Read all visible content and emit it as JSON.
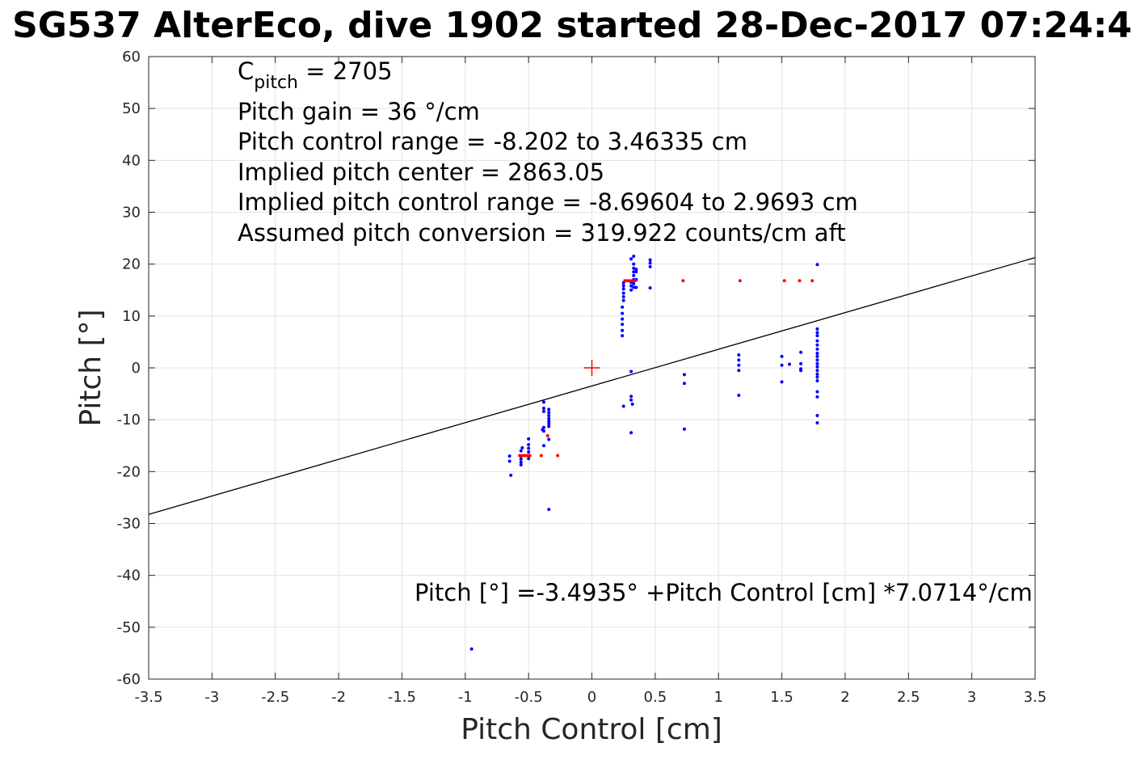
{
  "chart_data": {
    "type": "scatter",
    "title": "SG537 AlterEco, dive 1902 started 28-Dec-2017 07:24:4",
    "xlabel": "Pitch Control [cm]",
    "ylabel": "Pitch [°]",
    "xlim": [
      -3.5,
      3.5
    ],
    "ylim": [
      -60,
      60
    ],
    "xticks": [
      -3.5,
      -3,
      -2.5,
      -2,
      -1.5,
      -1,
      -0.5,
      0,
      0.5,
      1,
      1.5,
      2,
      2.5,
      3,
      3.5
    ],
    "xtick_labels": [
      "-3.5",
      "-3",
      "-2.5",
      "-2",
      "-1.5",
      "-1",
      "-0.5",
      "0",
      "0.5",
      "1",
      "1.5",
      "2",
      "2.5",
      "3",
      "3.5"
    ],
    "yticks": [
      -60,
      -50,
      -40,
      -30,
      -20,
      -10,
      0,
      10,
      20,
      30,
      40,
      50,
      60
    ],
    "ytick_labels": [
      "-60",
      "-50",
      "-40",
      "-30",
      "-20",
      "-10",
      "0",
      "10",
      "20",
      "30",
      "40",
      "50",
      "60"
    ],
    "grid": true,
    "series": [
      {
        "type": "scatter",
        "color": "#0000ff",
        "points": [
          [
            -0.65,
            -17.0
          ],
          [
            -0.65,
            -18.0
          ],
          [
            -0.64,
            -20.7
          ],
          [
            -0.56,
            -16.0
          ],
          [
            -0.56,
            -17.0
          ],
          [
            -0.56,
            -17.6
          ],
          [
            -0.56,
            -18.2
          ],
          [
            -0.56,
            -18.7
          ],
          [
            -0.55,
            -15.4
          ],
          [
            -0.5,
            -13.7
          ],
          [
            -0.5,
            -14.8
          ],
          [
            -0.5,
            -15.5
          ],
          [
            -0.5,
            -16.2
          ],
          [
            -0.5,
            -16.9
          ],
          [
            -0.5,
            -17.5
          ],
          [
            -0.38,
            -6.6
          ],
          [
            -0.38,
            -7.8
          ],
          [
            -0.38,
            -8.4
          ],
          [
            -0.38,
            -11.5
          ],
          [
            -0.38,
            -12.2
          ],
          [
            -0.38,
            -15.0
          ],
          [
            -0.39,
            -11.9
          ],
          [
            -0.34,
            -8.0
          ],
          [
            -0.34,
            -8.6
          ],
          [
            -0.34,
            -9.2
          ],
          [
            -0.34,
            -9.8
          ],
          [
            -0.34,
            -10.3
          ],
          [
            -0.34,
            -10.8
          ],
          [
            -0.34,
            -11.3
          ],
          [
            -0.34,
            -13.8
          ],
          [
            -0.34,
            -27.3
          ],
          [
            -0.95,
            -54.2
          ],
          [
            0.24,
            6.2
          ],
          [
            0.24,
            7.2
          ],
          [
            0.24,
            8.4
          ],
          [
            0.24,
            9.4
          ],
          [
            0.24,
            10.5
          ],
          [
            0.24,
            11.7
          ],
          [
            0.25,
            13.0
          ],
          [
            0.25,
            13.7
          ],
          [
            0.25,
            14.4
          ],
          [
            0.25,
            15.2
          ],
          [
            0.25,
            15.8
          ],
          [
            0.25,
            16.4
          ],
          [
            0.25,
            -7.4
          ],
          [
            0.31,
            15.0
          ],
          [
            0.31,
            15.8
          ],
          [
            0.31,
            16.5
          ],
          [
            0.31,
            21.0
          ],
          [
            0.31,
            -0.7
          ],
          [
            0.31,
            -5.5
          ],
          [
            0.31,
            -6.2
          ],
          [
            0.31,
            -12.5
          ],
          [
            0.32,
            -7.0
          ],
          [
            0.33,
            15.5
          ],
          [
            0.33,
            16.2
          ],
          [
            0.33,
            17.0
          ],
          [
            0.33,
            17.8
          ],
          [
            0.33,
            18.5
          ],
          [
            0.33,
            19.2
          ],
          [
            0.33,
            20.0
          ],
          [
            0.33,
            21.5
          ],
          [
            0.35,
            15.5
          ],
          [
            0.35,
            17.0
          ],
          [
            0.35,
            18.5
          ],
          [
            0.35,
            19.0
          ],
          [
            0.46,
            15.4
          ],
          [
            0.46,
            19.5
          ],
          [
            0.46,
            20.2
          ],
          [
            0.46,
            20.8
          ],
          [
            0.73,
            -1.3
          ],
          [
            0.73,
            -3.0
          ],
          [
            0.73,
            -11.8
          ],
          [
            1.16,
            2.5
          ],
          [
            1.16,
            1.5
          ],
          [
            1.16,
            0.5
          ],
          [
            1.16,
            -0.5
          ],
          [
            1.16,
            -5.3
          ],
          [
            1.5,
            2.2
          ],
          [
            1.5,
            0.5
          ],
          [
            1.5,
            -2.7
          ],
          [
            1.56,
            0.7
          ],
          [
            1.65,
            3.0
          ],
          [
            1.65,
            0.8
          ],
          [
            1.65,
            -0.2
          ],
          [
            1.65,
            -0.5
          ],
          [
            1.78,
            7.5
          ],
          [
            1.78,
            6.8
          ],
          [
            1.78,
            6.2
          ],
          [
            1.78,
            5.2
          ],
          [
            1.78,
            4.4
          ],
          [
            1.78,
            3.6
          ],
          [
            1.78,
            2.8
          ],
          [
            1.78,
            2.2
          ],
          [
            1.78,
            1.5
          ],
          [
            1.78,
            0.8
          ],
          [
            1.78,
            0.2
          ],
          [
            1.78,
            -0.5
          ],
          [
            1.78,
            -1.2
          ],
          [
            1.78,
            -1.8
          ],
          [
            1.78,
            -2.5
          ],
          [
            1.78,
            -4.6
          ],
          [
            1.78,
            -5.6
          ],
          [
            1.78,
            -9.2
          ],
          [
            1.78,
            -10.6
          ],
          [
            1.78,
            19.9
          ]
        ]
      },
      {
        "type": "scatter",
        "color": "#ff0000",
        "points": [
          [
            -0.57,
            -16.9
          ],
          [
            -0.55,
            -16.9
          ],
          [
            -0.53,
            -16.9
          ],
          [
            -0.51,
            -16.9
          ],
          [
            -0.49,
            -16.9
          ],
          [
            -0.4,
            -16.9
          ],
          [
            -0.35,
            -13.1
          ],
          [
            -0.27,
            -16.9
          ],
          [
            0.26,
            16.8
          ],
          [
            0.28,
            16.8
          ],
          [
            0.3,
            16.8
          ],
          [
            0.32,
            16.8
          ],
          [
            0.34,
            16.8
          ],
          [
            0.72,
            16.8
          ],
          [
            1.17,
            16.8
          ],
          [
            1.52,
            16.8
          ],
          [
            1.64,
            16.8
          ],
          [
            1.74,
            16.8
          ]
        ]
      },
      {
        "type": "line",
        "color": "#000000",
        "intercept": -3.4935,
        "slope": 7.0714,
        "x": [
          -3.5,
          3.5
        ]
      },
      {
        "type": "marker",
        "color": "#ff0000",
        "shape": "plus",
        "points": [
          [
            0,
            0
          ]
        ]
      }
    ],
    "annotations": {
      "c_pitch_symbol": "C",
      "c_pitch_subscript": "pitch",
      "c_pitch_value": " = 2705",
      "pitch_gain": "Pitch gain = 36 °/cm",
      "pitch_control_range": "Pitch control range = -8.202 to 3.46335 cm",
      "implied_pitch_center": "Implied pitch center = 2863.05",
      "implied_pitch_control_range": "Implied pitch control range = -8.69604 to 2.9693 cm",
      "assumed_pitch_conversion": "Assumed pitch conversion = 319.922 counts/cm aft",
      "fit_equation": "Pitch [°] =-3.4935° +Pitch Control [cm] *7.0714°/cm"
    }
  }
}
